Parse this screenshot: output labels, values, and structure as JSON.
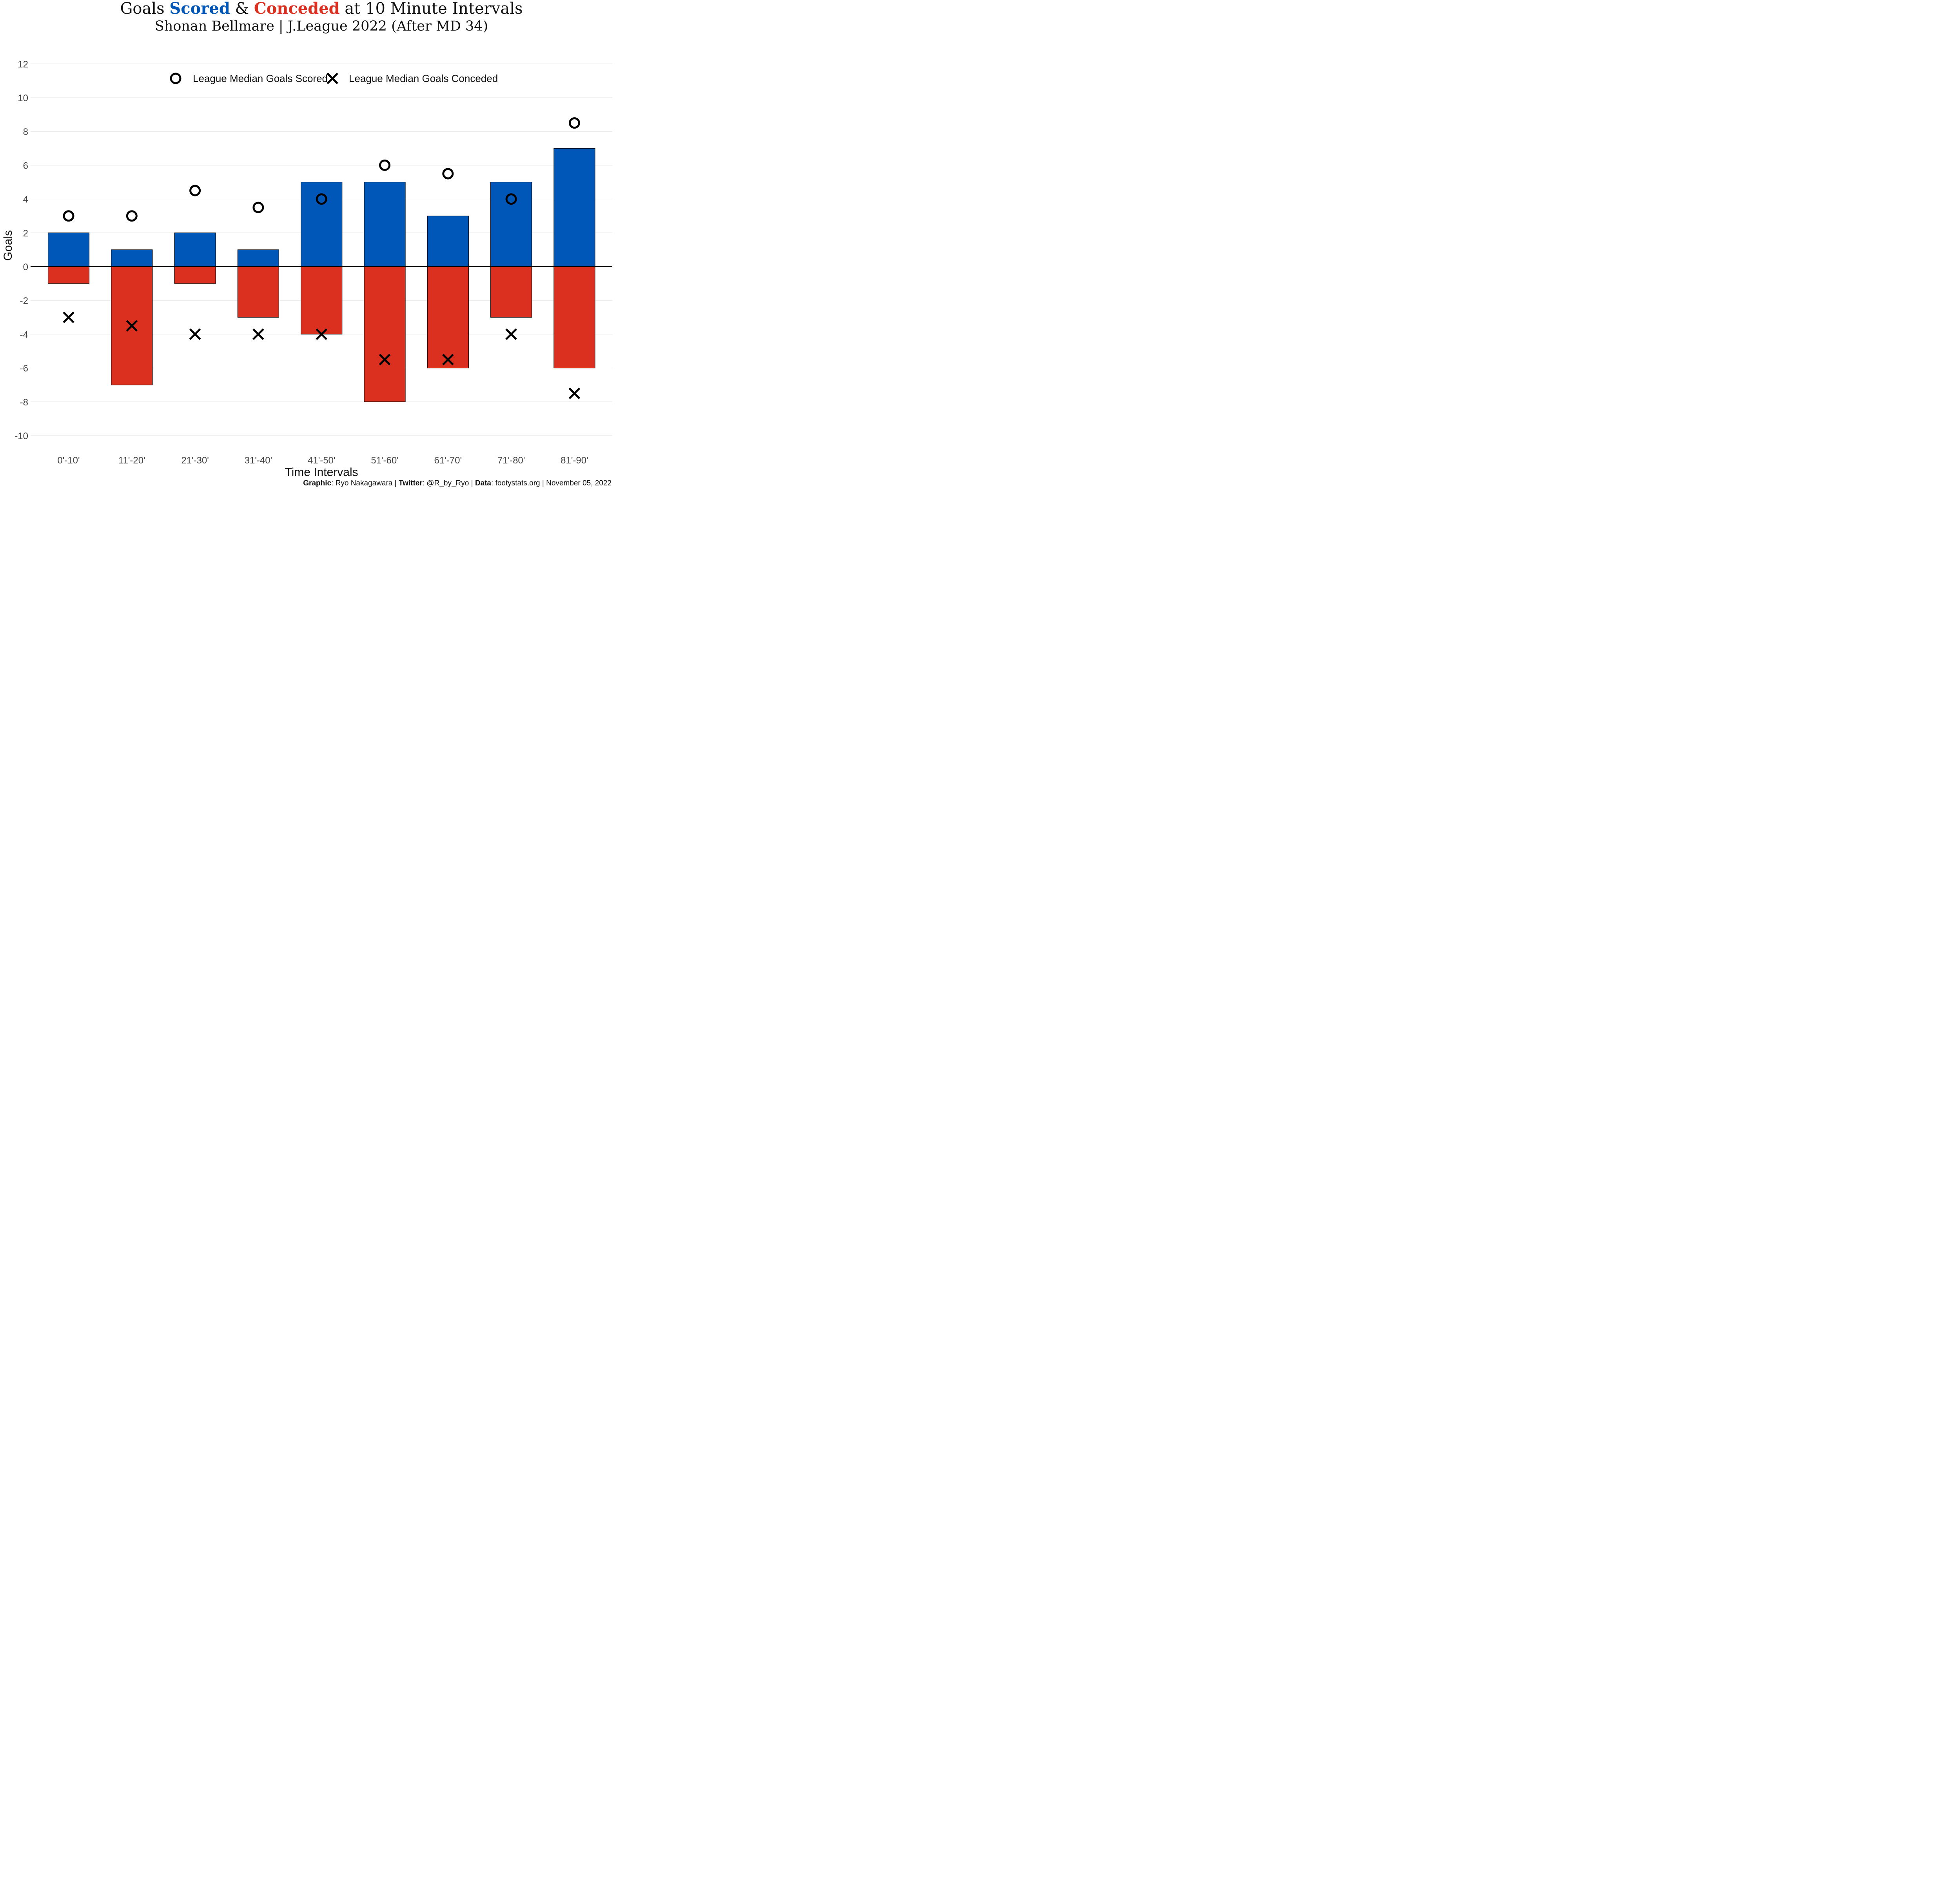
{
  "title": {
    "prefix": "Goals ",
    "scored": "Scored",
    "middle": " & ",
    "conceded": "Conceded",
    "suffix": " at 10 Minute Intervals"
  },
  "subtitle": "Shonan Bellmare | J.League 2022 (After MD 34)",
  "caption": {
    "graphic_label": "Graphic",
    "graphic_value": ": Ryo Nakagawara | ",
    "twitter_label": "Twitter",
    "twitter_value": ": @R_by_Ryo | ",
    "data_label": "Data",
    "data_value": ": footystats.org | November 05, 2022"
  },
  "colors": {
    "scored": "#0057b7",
    "conceded": "#db3020"
  },
  "chart_data": {
    "type": "bar",
    "xlabel": "Time Intervals",
    "ylabel": "Goals",
    "ylim": [
      -10,
      12
    ],
    "yticks": [
      -10,
      -8,
      -6,
      -4,
      -2,
      0,
      2,
      4,
      6,
      8,
      10,
      12
    ],
    "grid": "horizontal",
    "legend_position": "top",
    "categories": [
      "0'-10'",
      "11'-20'",
      "21'-30'",
      "31'-40'",
      "41'-50'",
      "51'-60'",
      "61'-70'",
      "71'-80'",
      "81'-90'"
    ],
    "series": [
      {
        "key": "scored",
        "type": "bar",
        "values": [
          2,
          1,
          2,
          1,
          5,
          5,
          3,
          5,
          7
        ]
      },
      {
        "key": "conceded",
        "type": "bar",
        "values": [
          -1,
          -7,
          -1,
          -3,
          -4,
          -8,
          -6,
          -3,
          -6
        ]
      },
      {
        "name": "League Median Goals Scored",
        "marker": "circle",
        "values": [
          3,
          3,
          4.5,
          3.5,
          4,
          6,
          5.5,
          4,
          8.5
        ]
      },
      {
        "name": "League Median Goals Conceded",
        "marker": "x",
        "values": [
          -3,
          -3.5,
          -4,
          -4,
          -4,
          -5.5,
          -5.5,
          -4,
          -7.5
        ]
      }
    ]
  }
}
